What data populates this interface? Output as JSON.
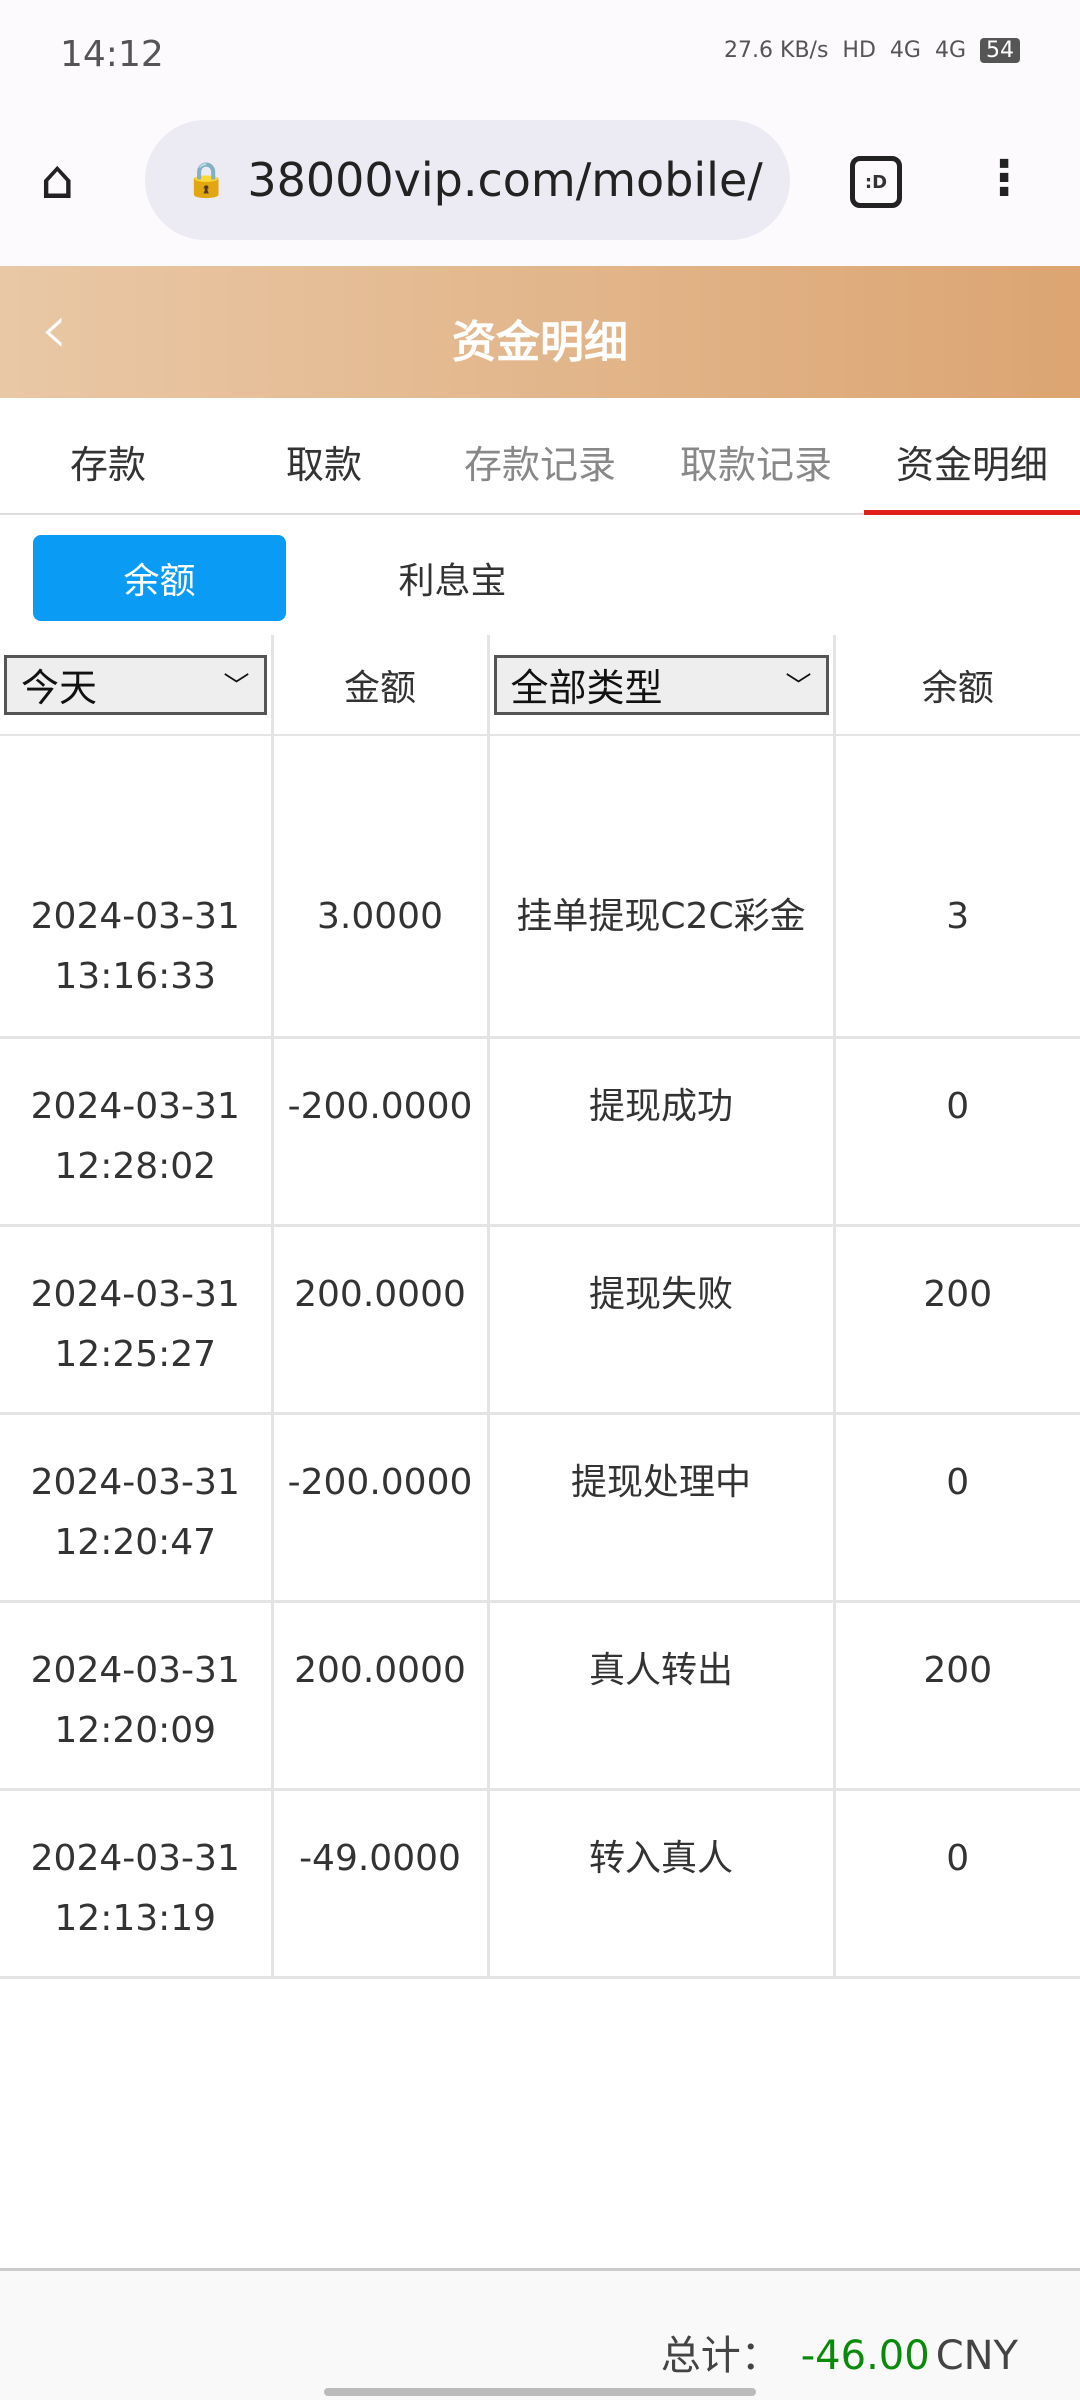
{
  "status_bar": {
    "time": "14:12",
    "net_speed": "27.6 KB/s",
    "hd": "HD",
    "sim1": "4G",
    "sim2": "4G",
    "battery": "54"
  },
  "browser": {
    "url": "38000vip.com/mobile/"
  },
  "header": {
    "title": "资金明细"
  },
  "nav_tabs": [
    {
      "label": "存款"
    },
    {
      "label": "取款"
    },
    {
      "label": "存款记录"
    },
    {
      "label": "取款记录"
    },
    {
      "label": "资金明细"
    }
  ],
  "sub_tabs": [
    {
      "label": "余额"
    },
    {
      "label": "利息宝"
    }
  ],
  "table": {
    "date_filter": "今天",
    "amount_header": "金额",
    "type_filter": "全部类型",
    "balance_header": "余额",
    "rows": [
      {
        "date": "2024-03-31",
        "time": "13:16:33",
        "amount": "3.0000",
        "type": "挂单提现C2C彩金",
        "balance": "3"
      },
      {
        "date": "2024-03-31",
        "time": "12:28:02",
        "amount": "-200.0000",
        "type": "提现成功",
        "balance": "0"
      },
      {
        "date": "2024-03-31",
        "time": "12:25:27",
        "amount": "200.0000",
        "type": "提现失败",
        "balance": "200"
      },
      {
        "date": "2024-03-31",
        "time": "12:20:47",
        "amount": "-200.0000",
        "type": "提现处理中",
        "balance": "0"
      },
      {
        "date": "2024-03-31",
        "time": "12:20:09",
        "amount": "200.0000",
        "type": "真人转出",
        "balance": "200"
      },
      {
        "date": "2024-03-31",
        "time": "12:13:19",
        "amount": "-49.0000",
        "type": "转入真人",
        "balance": "0"
      }
    ]
  },
  "footer": {
    "label": "总计：",
    "total": "-46.00",
    "currency": "CNY"
  },
  "colors": {
    "accent": "#0a9bf5",
    "active_tab": "#e0201a",
    "total": "#0a8a0a"
  }
}
